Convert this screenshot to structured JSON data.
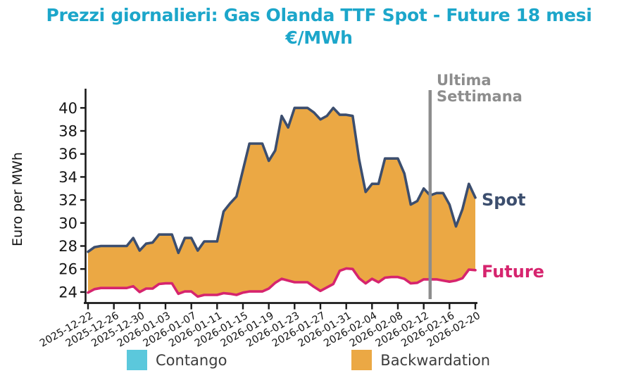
{
  "title": {
    "line1": "Prezzi giornalieri: Gas Olanda TTF Spot - Future 18 mesi",
    "line2": "€/MWh"
  },
  "labels": {
    "ylabel": "Euro per MWh",
    "spot": "Spot",
    "future": "Future",
    "ultima": "Ultima Settimana"
  },
  "legend": {
    "items": [
      {
        "label": "Contango",
        "color": "#5bc8dc"
      },
      {
        "label": "Backwardation",
        "color": "#eba844"
      }
    ]
  },
  "colors": {
    "title": "#1ca6ca",
    "spot": "#3c4e6e",
    "future": "#d6246e",
    "backwardation": "#eba844",
    "contango": "#5bc8dc",
    "annotation": "#8d8d8d",
    "axis": "#1a1a1a",
    "legend_text": "#3d3d3d"
  },
  "chart_data": {
    "type": "area",
    "title": "Prezzi giornalieri: Gas Olanda TTF Spot - Future 18 mesi €/MWh",
    "xlabel": "",
    "ylabel": "Euro per MWh",
    "ylim": [
      23.1,
      41.7
    ],
    "y_ticks": [
      24,
      26,
      28,
      30,
      32,
      34,
      36,
      38,
      40
    ],
    "grid": false,
    "legend_position": "bottom",
    "fill_rule": "area between Spot and Future filled orange = Backwardation (Spot > Future); cyan = Contango (not present)",
    "x": [
      "2025-12-22",
      "2025-12-23",
      "2025-12-24",
      "2025-12-25",
      "2025-12-26",
      "2025-12-27",
      "2025-12-28",
      "2025-12-29",
      "2025-12-30",
      "2025-12-31",
      "2026-01-01",
      "2026-01-02",
      "2026-01-03",
      "2026-01-04",
      "2026-01-05",
      "2026-01-06",
      "2026-01-07",
      "2026-01-08",
      "2026-01-09",
      "2026-01-10",
      "2026-01-11",
      "2026-01-12",
      "2026-01-13",
      "2026-01-14",
      "2026-01-15",
      "2026-01-16",
      "2026-01-17",
      "2026-01-18",
      "2026-01-19",
      "2026-01-20",
      "2026-01-21",
      "2026-01-22",
      "2026-01-23",
      "2026-01-24",
      "2026-01-25",
      "2026-01-26",
      "2026-01-27",
      "2026-01-28",
      "2026-01-29",
      "2026-01-30",
      "2026-01-31",
      "2026-02-01",
      "2026-02-02",
      "2026-02-03",
      "2026-02-04",
      "2026-02-05",
      "2026-02-06",
      "2026-02-07",
      "2026-02-08",
      "2026-02-09",
      "2026-02-10",
      "2026-02-11",
      "2026-02-12",
      "2026-02-13",
      "2026-02-14",
      "2026-02-15",
      "2026-02-16",
      "2026-02-17",
      "2026-02-18",
      "2026-02-19",
      "2026-02-20"
    ],
    "x_tick_days": [
      0,
      4,
      8,
      12,
      16,
      20,
      24,
      28,
      32,
      36,
      40,
      44,
      48,
      52,
      56,
      60
    ],
    "x_ticklabels": [
      "2025-12-22",
      "2025-12-26",
      "2025-12-30",
      "2026-01-03",
      "2026-01-07",
      "2026-01-11",
      "2026-01-15",
      "2026-01-19",
      "2026-01-23",
      "2026-01-27",
      "2026-01-31",
      "2026-02-04",
      "2026-02-08",
      "2026-02-12",
      "2026-02-16",
      "2026-02-20"
    ],
    "series": [
      {
        "name": "Spot",
        "color": "#3c4e6e",
        "values": [
          27.5,
          27.9,
          28.0,
          28.0,
          28.0,
          28.0,
          28.0,
          28.7,
          27.6,
          28.2,
          28.3,
          29.0,
          29.0,
          29.0,
          27.4,
          28.7,
          28.7,
          27.6,
          28.4,
          28.4,
          28.4,
          31.0,
          31.7,
          32.3,
          34.6,
          36.9,
          36.9,
          36.9,
          35.4,
          36.3,
          39.3,
          38.3,
          40.0,
          40.0,
          40.0,
          39.6,
          39.0,
          39.3,
          40.0,
          39.4,
          39.4,
          39.3,
          35.5,
          32.7,
          33.4,
          33.4,
          35.6,
          35.6,
          35.6,
          34.3,
          31.6,
          31.9,
          33.0,
          32.4,
          32.6,
          32.6,
          31.6,
          29.7,
          31.2,
          33.4,
          32.2
        ]
      },
      {
        "name": "Future",
        "color": "#d6246e",
        "values": [
          23.95,
          24.25,
          24.35,
          24.35,
          24.35,
          24.35,
          24.35,
          24.5,
          24.0,
          24.3,
          24.3,
          24.7,
          24.75,
          24.75,
          23.85,
          24.05,
          24.05,
          23.6,
          23.75,
          23.75,
          23.75,
          23.9,
          23.85,
          23.75,
          23.95,
          24.05,
          24.05,
          24.05,
          24.3,
          24.8,
          25.15,
          25.0,
          24.85,
          24.85,
          24.85,
          24.45,
          24.1,
          24.4,
          24.7,
          25.85,
          26.05,
          26.0,
          25.2,
          24.75,
          25.15,
          24.85,
          25.25,
          25.3,
          25.3,
          25.15,
          24.75,
          24.8,
          25.1,
          25.1,
          25.1,
          25.0,
          24.9,
          25.0,
          25.2,
          25.95,
          25.9
        ]
      }
    ],
    "annotation_vline": {
      "date": "2026-02-13",
      "day_index": 53,
      "label": "Ultima Settimana",
      "color": "#8d8d8d"
    }
  }
}
